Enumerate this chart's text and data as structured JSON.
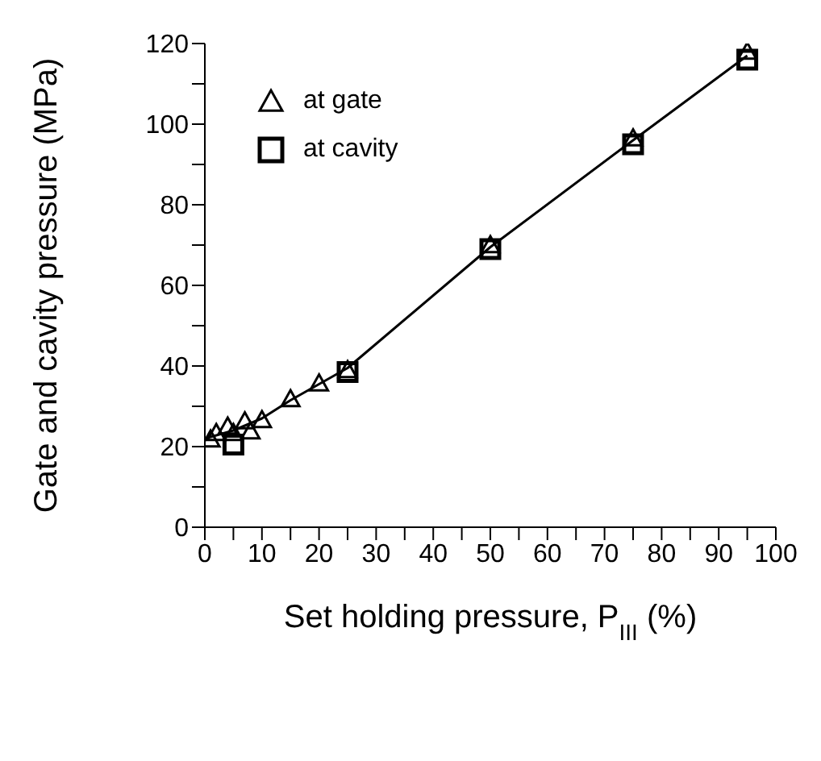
{
  "chart_data": {
    "type": "scatter",
    "xlabel": "Set holding pressure, P$_{III}$ (%)",
    "ylabel": "Gate and cavity pressure (MPa)",
    "xlim": [
      0,
      100
    ],
    "xticks": [
      0,
      {
        "value": 5,
        "label": null
      },
      10,
      {
        "value": 15,
        "label": null
      },
      20,
      {
        "value": 25,
        "label": null
      },
      30,
      {
        "value": 35,
        "label": null
      },
      40,
      {
        "value": 45,
        "label": null
      },
      50,
      {
        "value": 55,
        "label": null
      },
      60,
      {
        "value": 65,
        "label": null
      },
      70,
      {
        "value": 75,
        "label": null
      },
      80,
      {
        "value": 85,
        "label": null
      },
      90,
      {
        "value": 95,
        "label": null
      },
      100
    ],
    "ylim": [
      0,
      120
    ],
    "yticks": [
      0,
      {
        "value": 10,
        "label": null
      },
      20,
      {
        "value": 30,
        "label": null
      },
      40,
      {
        "value": 50,
        "label": null
      },
      60,
      {
        "value": 70,
        "label": null
      },
      80,
      {
        "value": 90,
        "label": null
      },
      100,
      {
        "value": 110,
        "label": null
      },
      120
    ],
    "grid": false,
    "legend": "top left",
    "series": [
      {
        "name": "at gate",
        "type": "scatter",
        "marker": "triangle",
        "color": "#000000",
        "x": [
          1,
          2,
          4,
          5,
          7,
          8,
          10,
          15,
          20,
          25,
          50,
          75,
          95
        ],
        "values": [
          21.8,
          23.4,
          25,
          23.4,
          26.3,
          23.8,
          26.6,
          31.8,
          35.7,
          39,
          70,
          96.5,
          118
        ]
      },
      {
        "name": "at cavity",
        "type": "scatter",
        "marker": "square",
        "color": "#000000",
        "x": [
          5,
          25,
          50,
          75,
          95
        ],
        "values": [
          20.5,
          38.5,
          69,
          95,
          116
        ]
      },
      {
        "type": "line",
        "marker": "none",
        "color": "#000000",
        "x": [
          0,
          5,
          10,
          15,
          20,
          25,
          50,
          75,
          95
        ],
        "values": [
          22,
          24,
          27,
          31.5,
          35.5,
          39.5,
          69.5,
          96,
          117
        ]
      }
    ]
  }
}
